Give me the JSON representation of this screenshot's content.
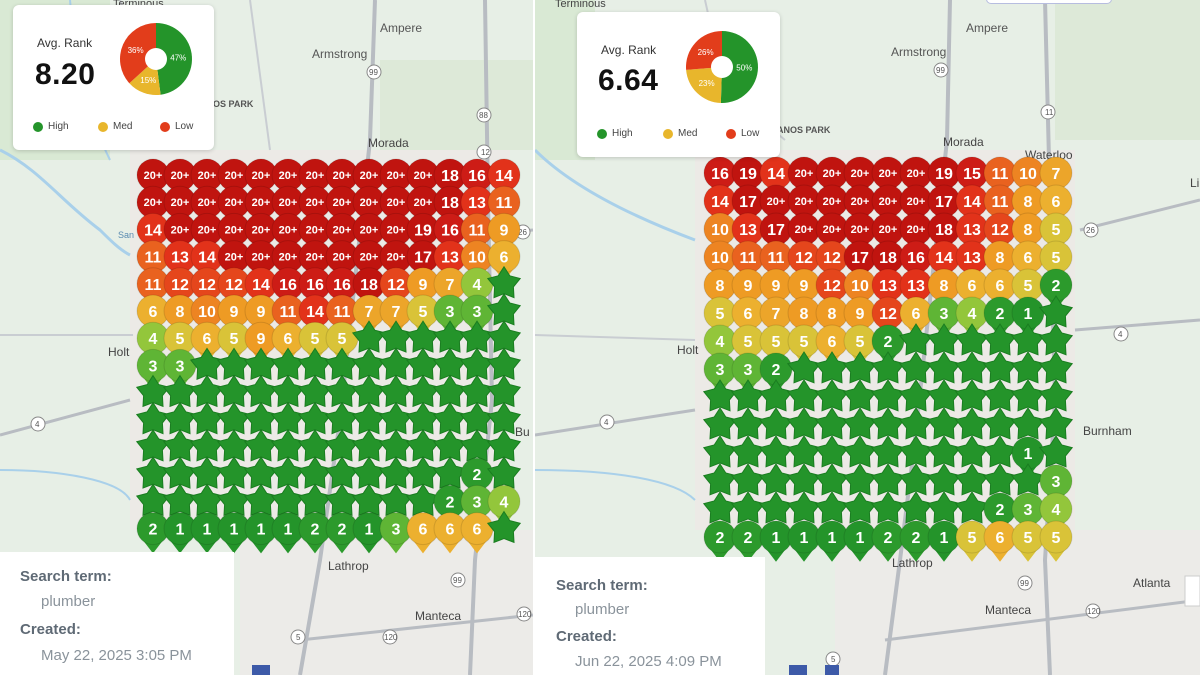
{
  "colors": {
    "high": "#24942a",
    "med": "#e8b62c",
    "low": "#e23d1b"
  },
  "panels": [
    {
      "avg_rank_label": "Avg. Rank",
      "avg_rank_value": "8.20",
      "donut": [
        {
          "label": "47%",
          "value": 47,
          "color": "#24942a"
        },
        {
          "label": "15%",
          "value": 15,
          "color": "#e8b62c"
        },
        {
          "label": "36%",
          "value": 36,
          "color": "#e23d1b"
        }
      ],
      "legend": [
        "High",
        "Med",
        "Low"
      ],
      "search_term_label": "Search term:",
      "search_term": "plumber",
      "created_label": "Created:",
      "created": "May 22, 2025 3:05 PM",
      "map_labels": [
        "Terminous",
        "Ampere",
        "Armstrong",
        "NOS PARK",
        "Morada",
        "Holt",
        "Bu",
        "Lathrop",
        "Manteca",
        "San",
        "99",
        "88",
        "26",
        "12",
        "4",
        "120",
        "5",
        "205",
        "99"
      ],
      "grid": [
        [
          "20+",
          "20+",
          "20+",
          "20+",
          "20+",
          "20+",
          "20+",
          "20+",
          "20+",
          "20+",
          "20+",
          "18",
          "16",
          "14"
        ],
        [
          "20+",
          "20+",
          "20+",
          "20+",
          "20+",
          "20+",
          "20+",
          "20+",
          "20+",
          "20+",
          "20+",
          "18",
          "13",
          "11"
        ],
        [
          "14",
          "20+",
          "20+",
          "20+",
          "20+",
          "20+",
          "20+",
          "20+",
          "20+",
          "20+",
          "19",
          "16",
          "11",
          "9"
        ],
        [
          "11",
          "13",
          "14",
          "20+",
          "20+",
          "20+",
          "20+",
          "20+",
          "20+",
          "20+",
          "17",
          "13",
          "10",
          "6"
        ],
        [
          "11",
          "12",
          "12",
          "12",
          "14",
          "16",
          "16",
          "16",
          "18",
          "12",
          "9",
          "7",
          "4",
          ""
        ],
        [
          "6",
          "8",
          "10",
          "9",
          "9",
          "11",
          "14",
          "11",
          "7",
          "7",
          "5",
          "3",
          "3",
          ""
        ],
        [
          "4",
          "5",
          "6",
          "5",
          "9",
          "6",
          "5",
          "5",
          "",
          "",
          "",
          "",
          "",
          ""
        ],
        [
          "3",
          "3",
          "",
          "",
          "",
          "",
          "",
          "",
          "",
          "",
          "",
          "",
          "",
          ""
        ],
        [
          "",
          "",
          "",
          "",
          "",
          "",
          "",
          "",
          "",
          "",
          "",
          "",
          "",
          ""
        ],
        [
          "",
          "",
          "",
          "",
          "",
          "",
          "",
          "",
          "",
          "",
          "",
          "",
          "",
          ""
        ],
        [
          "",
          "",
          "",
          "",
          "",
          "",
          "",
          "",
          "",
          "",
          "",
          "",
          "",
          ""
        ],
        [
          "",
          "",
          "",
          "",
          "",
          "",
          "",
          "",
          "",
          "",
          "",
          "",
          "2",
          ""
        ],
        [
          "",
          "",
          "",
          "",
          "",
          "",
          "",
          "",
          "",
          "",
          "",
          "2",
          "3",
          "4"
        ],
        [
          "2",
          "1",
          "1",
          "1",
          "1",
          "1",
          "2",
          "2",
          "1",
          "3",
          "6",
          "6",
          "6",
          ""
        ]
      ]
    },
    {
      "avg_rank_label": "Avg. Rank",
      "avg_rank_value": "6.64",
      "donut": [
        {
          "label": "50%",
          "value": 50,
          "color": "#24942a"
        },
        {
          "label": "23%",
          "value": 23,
          "color": "#e8b62c"
        },
        {
          "label": "26%",
          "value": 26,
          "color": "#e23d1b"
        }
      ],
      "legend": [
        "High",
        "Med",
        "Low"
      ],
      "search_term_label": "Search term:",
      "search_term": "plumber",
      "created_label": "Created:",
      "created": "Jun 22, 2025 4:09 PM",
      "map_labels": [
        "Terminous",
        "Ampere",
        "Armstrong",
        "NOS PARK",
        "Morada",
        "Waterloo",
        "Li",
        "Holt",
        "Burnham",
        "Lathrop",
        "Atlanta",
        "Manteca",
        "99",
        "26",
        "4",
        "4",
        "120",
        "99",
        "5",
        "205"
      ],
      "grid": [
        [
          "16",
          "19",
          "14",
          "20+",
          "20+",
          "20+",
          "20+",
          "20+",
          "19",
          "15",
          "11",
          "10",
          "7"
        ],
        [
          "14",
          "17",
          "20+",
          "20+",
          "20+",
          "20+",
          "20+",
          "20+",
          "17",
          "14",
          "11",
          "8",
          "6"
        ],
        [
          "10",
          "13",
          "17",
          "20+",
          "20+",
          "20+",
          "20+",
          "20+",
          "18",
          "13",
          "12",
          "8",
          "5"
        ],
        [
          "10",
          "11",
          "11",
          "12",
          "12",
          "17",
          "18",
          "16",
          "14",
          "13",
          "8",
          "6",
          "5"
        ],
        [
          "8",
          "9",
          "9",
          "9",
          "12",
          "10",
          "13",
          "13",
          "8",
          "6",
          "6",
          "5",
          "2"
        ],
        [
          "5",
          "6",
          "7",
          "8",
          "8",
          "9",
          "12",
          "6",
          "3",
          "4",
          "2",
          "1",
          ""
        ],
        [
          "4",
          "5",
          "5",
          "5",
          "6",
          "5",
          "2",
          "",
          "",
          "",
          "",
          "",
          ""
        ],
        [
          "3",
          "3",
          "2",
          "",
          "",
          "",
          "",
          "",
          "",
          "",
          "",
          "",
          ""
        ],
        [
          "",
          "",
          "",
          "",
          "",
          "",
          "",
          "",
          "",
          "",
          "",
          "",
          ""
        ],
        [
          "",
          "",
          "",
          "",
          "",
          "",
          "",
          "",
          "",
          "",
          "",
          "",
          ""
        ],
        [
          "",
          "",
          "",
          "",
          "",
          "",
          "",
          "",
          "",
          "",
          "",
          "1",
          ""
        ],
        [
          "",
          "",
          "",
          "",
          "",
          "",
          "",
          "",
          "",
          "",
          "",
          "",
          "3"
        ],
        [
          "",
          "",
          "",
          "",
          "",
          "",
          "",
          "",
          "",
          "",
          "2",
          "3",
          "4"
        ],
        [
          "2",
          "2",
          "1",
          "1",
          "1",
          "1",
          "2",
          "2",
          "1",
          "5",
          "6",
          "5",
          "5"
        ]
      ]
    }
  ]
}
